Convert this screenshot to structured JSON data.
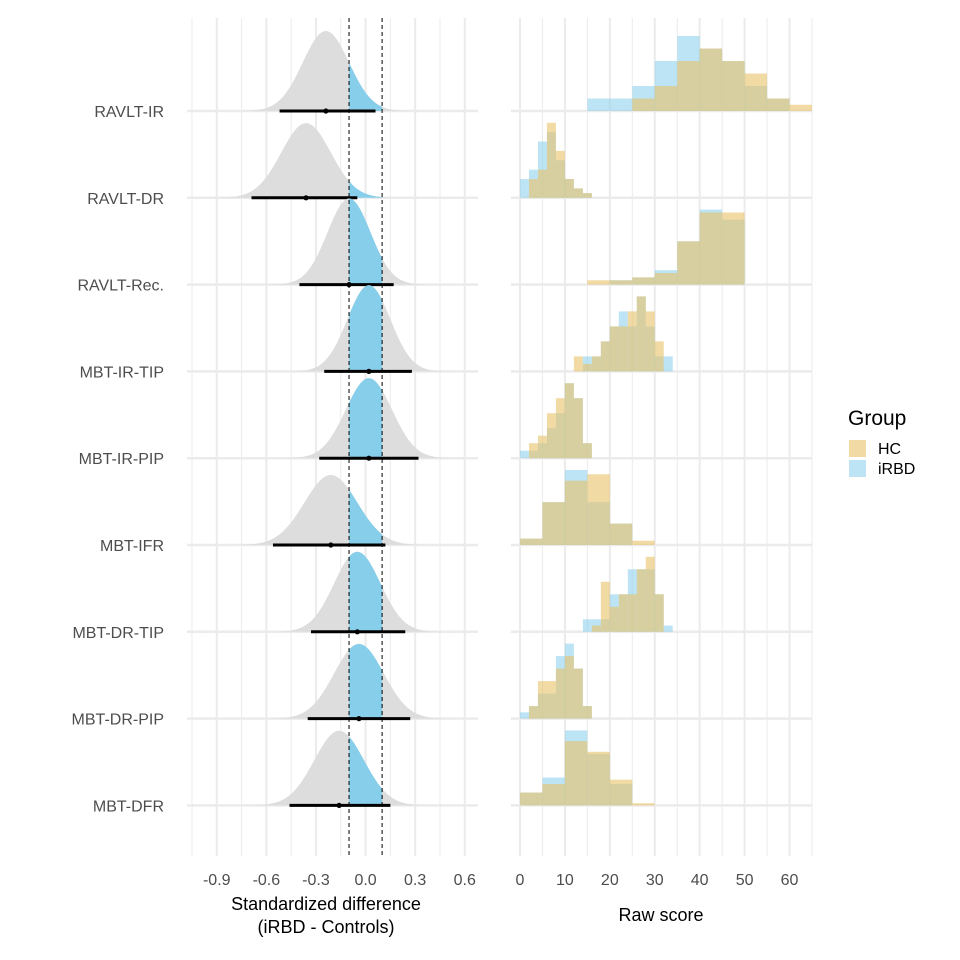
{
  "chart_data": [
    {
      "type": "area",
      "panel": "left",
      "xlabel_lines": [
        "Standardized difference",
        "(iRBD - Controls)"
      ],
      "xticks": [
        "-0.9",
        "-0.6",
        "-0.3",
        "0.0",
        "0.3",
        "0.6"
      ],
      "xlim": [
        -1.08,
        0.68
      ],
      "rope": [
        -0.1,
        0.1
      ],
      "categories": [
        "RAVLT-IR",
        "RAVLT-DR",
        "RAVLT-Rec.",
        "MBT-IR-TIP",
        "MBT-IR-PIP",
        "MBT-IFR",
        "MBT-DR-TIP",
        "MBT-DR-PIP",
        "MBT-DFR"
      ],
      "estimates": [
        {
          "label": "RAVLT-IR",
          "median": -0.24,
          "ci": [
            -0.52,
            0.06
          ],
          "sd": 0.14
        },
        {
          "label": "RAVLT-DR",
          "median": -0.36,
          "ci": [
            -0.69,
            -0.05
          ],
          "sd": 0.15
        },
        {
          "label": "RAVLT-Rec.",
          "median": -0.1,
          "ci": [
            -0.4,
            0.17
          ],
          "sd": 0.13
        },
        {
          "label": "MBT-IR-TIP",
          "median": 0.02,
          "ci": [
            -0.25,
            0.28
          ],
          "sd": 0.13
        },
        {
          "label": "MBT-IR-PIP",
          "median": 0.02,
          "ci": [
            -0.28,
            0.32
          ],
          "sd": 0.14
        },
        {
          "label": "MBT-IFR",
          "median": -0.21,
          "ci": [
            -0.56,
            0.12
          ],
          "sd": 0.16
        },
        {
          "label": "MBT-DR-TIP",
          "median": -0.05,
          "ci": [
            -0.33,
            0.24
          ],
          "sd": 0.14
        },
        {
          "label": "MBT-DR-PIP",
          "median": -0.04,
          "ci": [
            -0.35,
            0.27
          ],
          "sd": 0.15
        },
        {
          "label": "MBT-DFR",
          "median": -0.16,
          "ci": [
            -0.46,
            0.15
          ],
          "sd": 0.15
        }
      ],
      "colors": {
        "density": "#dddddd",
        "rope_fill": "#87ceeb",
        "interval": "#000000",
        "rope_line": "#000000"
      },
      "grid": true
    },
    {
      "type": "bar",
      "panel": "right",
      "xlabel": "Raw score",
      "xticks": [
        "0",
        "10",
        "20",
        "30",
        "40",
        "50",
        "60"
      ],
      "xlim": [
        -2,
        65
      ],
      "legend": {
        "title": "Group",
        "position": "right"
      },
      "series": [
        {
          "name": "HC",
          "color": "#e8c168"
        },
        {
          "name": "iRBD",
          "color": "#87ceeb"
        }
      ],
      "histograms": [
        {
          "label": "RAVLT-IR",
          "bins": [
            [
              15,
              20,
              0,
              1
            ],
            [
              20,
              25,
              0,
              1
            ],
            [
              25,
              30,
              1,
              2
            ],
            [
              30,
              35,
              2,
              4
            ],
            [
              35,
              40,
              4,
              6
            ],
            [
              40,
              45,
              5,
              5
            ],
            [
              45,
              50,
              4,
              4
            ],
            [
              50,
              55,
              3,
              2
            ],
            [
              55,
              60,
              1,
              1
            ],
            [
              60,
              65,
              0.5,
              0
            ]
          ]
        },
        {
          "label": "RAVLT-DR",
          "bins": [
            [
              0,
              2,
              0,
              2
            ],
            [
              2,
              4,
              2,
              3
            ],
            [
              4,
              6,
              3,
              6
            ],
            [
              6,
              8,
              8,
              7
            ],
            [
              8,
              10,
              5,
              4
            ],
            [
              10,
              12,
              2,
              2
            ],
            [
              12,
              14,
              1,
              1
            ],
            [
              14,
              16,
              0.5,
              0.5
            ]
          ]
        },
        {
          "label": "RAVLT-Rec.",
          "bins": [
            [
              15,
              20,
              0.3,
              0
            ],
            [
              20,
              25,
              0.3,
              0.3
            ],
            [
              25,
              30,
              0.5,
              0.5
            ],
            [
              30,
              35,
              0.8,
              1
            ],
            [
              35,
              40,
              3,
              3
            ],
            [
              40,
              45,
              5,
              5.2
            ],
            [
              45,
              50,
              5,
              4.5
            ]
          ]
        },
        {
          "label": "MBT-IR-TIP",
          "bins": [
            [
              12,
              14,
              1,
              0
            ],
            [
              14,
              16,
              0.5,
              1
            ],
            [
              16,
              18,
              1,
              1
            ],
            [
              18,
              20,
              2,
              2
            ],
            [
              20,
              22,
              3,
              3
            ],
            [
              22,
              24,
              3,
              4
            ],
            [
              24,
              26,
              4,
              3
            ],
            [
              26,
              28,
              5,
              5
            ],
            [
              28,
              30,
              4,
              3
            ],
            [
              30,
              32,
              2,
              1
            ],
            [
              32,
              34,
              0,
              1
            ]
          ]
        },
        {
          "label": "MBT-IR-PIP",
          "bins": [
            [
              0,
              2,
              0,
              0.5
            ],
            [
              2,
              4,
              1,
              0.5
            ],
            [
              4,
              6,
              1.5,
              1
            ],
            [
              6,
              8,
              3,
              2
            ],
            [
              8,
              10,
              4,
              3
            ],
            [
              10,
              12,
              5,
              5
            ],
            [
              12,
              14,
              4,
              4
            ],
            [
              14,
              16,
              1,
              1
            ]
          ]
        },
        {
          "label": "MBT-IFR",
          "bins": [
            [
              0,
              5,
              0.3,
              0.3
            ],
            [
              5,
              10,
              2,
              2
            ],
            [
              10,
              15,
              3,
              3.5
            ],
            [
              15,
              20,
              3.3,
              2
            ],
            [
              20,
              25,
              1,
              1
            ],
            [
              25,
              30,
              0.2,
              0
            ]
          ]
        },
        {
          "label": "MBT-DR-TIP",
          "bins": [
            [
              14,
              16,
              0,
              1
            ],
            [
              16,
              18,
              0.5,
              1
            ],
            [
              18,
              20,
              4,
              1
            ],
            [
              20,
              22,
              2,
              3
            ],
            [
              22,
              24,
              3,
              3
            ],
            [
              24,
              26,
              3,
              5
            ],
            [
              26,
              28,
              5,
              5
            ],
            [
              28,
              30,
              6,
              5
            ],
            [
              30,
              32,
              3,
              3
            ],
            [
              32,
              34,
              0,
              0.5
            ]
          ]
        },
        {
          "label": "MBT-DR-PIP",
          "bins": [
            [
              0,
              2,
              0,
              0.5
            ],
            [
              2,
              4,
              1,
              1
            ],
            [
              4,
              6,
              3,
              2
            ],
            [
              6,
              8,
              3,
              2
            ],
            [
              8,
              10,
              4,
              5
            ],
            [
              10,
              12,
              5,
              6
            ],
            [
              12,
              14,
              4,
              4
            ],
            [
              14,
              16,
              1,
              1
            ]
          ]
        },
        {
          "label": "MBT-DFR",
          "bins": [
            [
              0,
              5,
              0.6,
              0.6
            ],
            [
              5,
              10,
              1,
              1.3
            ],
            [
              10,
              15,
              3,
              3.5
            ],
            [
              15,
              20,
              2.5,
              2.4
            ],
            [
              20,
              25,
              1.2,
              1
            ],
            [
              25,
              30,
              0.1,
              0
            ]
          ]
        }
      ],
      "grid": true
    }
  ]
}
